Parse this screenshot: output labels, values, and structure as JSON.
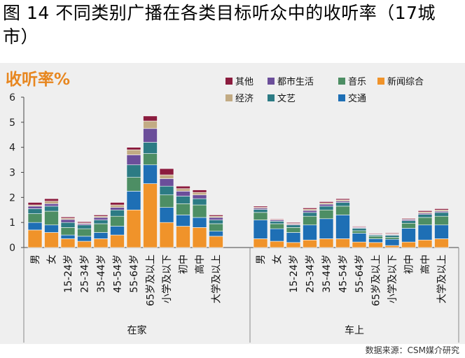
{
  "title": "图 14 不同类别广播在各类目标听众中的收听率（17城市）",
  "source": "数据来源：CSM媒介研究",
  "chart_data": {
    "type": "bar",
    "stacked": true,
    "ylabel": "收听率%",
    "ylim": [
      0,
      6
    ],
    "yticks": [
      "0",
      "1",
      "2",
      "3",
      "4",
      "5",
      "6"
    ],
    "groups": [
      {
        "name": "在家",
        "categories": [
          "男",
          "女",
          "15-24岁",
          "25-34岁",
          "35-44岁",
          "45-54岁",
          "55-64岁",
          "65岁及以上",
          "小学及以下",
          "初中",
          "高中",
          "大学及以上"
        ]
      },
      {
        "name": "车上",
        "categories": [
          "男",
          "女",
          "15-24岁",
          "25-34岁",
          "35-44岁",
          "45-54岁",
          "55-64岁",
          "65岁及以上",
          "小学及以下",
          "初中",
          "高中",
          "大学及以上"
        ]
      }
    ],
    "series": [
      {
        "name": "新闻综合",
        "color": "#f0932a",
        "values": [
          0.7,
          0.6,
          0.35,
          0.25,
          0.35,
          0.5,
          1.5,
          2.55,
          1.0,
          0.85,
          0.8,
          0.45,
          0.35,
          0.25,
          0.2,
          0.3,
          0.35,
          0.35,
          0.22,
          0.2,
          0.08,
          0.22,
          0.3,
          0.35
        ]
      },
      {
        "name": "交通",
        "color": "#1e6fb5",
        "values": [
          0.3,
          0.3,
          0.15,
          0.2,
          0.25,
          0.35,
          0.75,
          0.75,
          0.6,
          0.45,
          0.4,
          0.2,
          0.75,
          0.5,
          0.4,
          0.6,
          0.8,
          0.95,
          0.35,
          0.15,
          0.25,
          0.55,
          0.6,
          0.55
        ]
      },
      {
        "name": "音乐",
        "color": "#4d8e64",
        "values": [
          0.35,
          0.55,
          0.3,
          0.3,
          0.35,
          0.4,
          0.55,
          0.45,
          0.5,
          0.45,
          0.5,
          0.3,
          0.3,
          0.2,
          0.2,
          0.35,
          0.35,
          0.35,
          0.1,
          0.1,
          0.08,
          0.2,
          0.3,
          0.35
        ]
      },
      {
        "name": "文艺",
        "color": "#2c7b84",
        "values": [
          0.2,
          0.2,
          0.2,
          0.15,
          0.15,
          0.25,
          0.5,
          0.45,
          0.35,
          0.3,
          0.25,
          0.15,
          0.12,
          0.1,
          0.1,
          0.15,
          0.15,
          0.15,
          0.1,
          0.05,
          0.08,
          0.1,
          0.12,
          0.15
        ]
      },
      {
        "name": "都市生活",
        "color": "#6b4e9a",
        "values": [
          0.1,
          0.1,
          0.12,
          0.05,
          0.1,
          0.1,
          0.4,
          0.55,
          0.3,
          0.2,
          0.15,
          0.1,
          0.05,
          0.05,
          0.03,
          0.08,
          0.08,
          0.05,
          0.03,
          0.02,
          0.03,
          0.05,
          0.05,
          0.05
        ]
      },
      {
        "name": "经济",
        "color": "#c2ab84",
        "values": [
          0.05,
          0.1,
          0.05,
          0.03,
          0.05,
          0.1,
          0.2,
          0.3,
          0.15,
          0.1,
          0.1,
          0.05,
          0.03,
          0.02,
          0.03,
          0.05,
          0.05,
          0.05,
          0.02,
          0.02,
          0.03,
          0.03,
          0.05,
          0.05
        ]
      },
      {
        "name": "其他",
        "color": "#8b1c3e",
        "values": [
          0.1,
          0.1,
          0.05,
          0.05,
          0.05,
          0.1,
          0.1,
          0.2,
          0.25,
          0.1,
          0.1,
          0.05,
          0.05,
          0.03,
          0.04,
          0.05,
          0.05,
          0.05,
          0.03,
          0.03,
          0.03,
          0.03,
          0.05,
          0.05
        ]
      }
    ],
    "legend": {
      "rows": [
        [
          "其他",
          "都市生活",
          "音乐",
          "新闻综合"
        ],
        [
          "经济",
          "文艺",
          "交通"
        ]
      ]
    }
  }
}
